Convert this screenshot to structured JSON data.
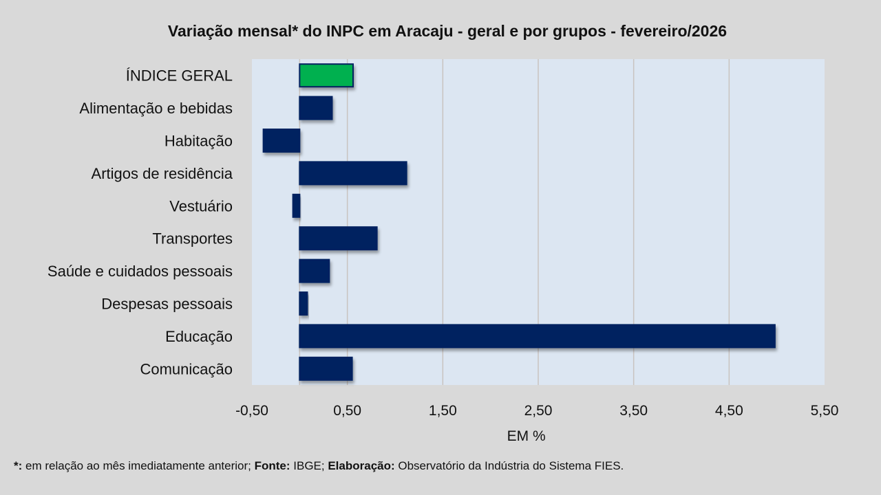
{
  "chart_data": {
    "type": "bar",
    "orientation": "horizontal",
    "title": "Variação  mensal*  do INPC em Aracaju  - geral e por grupos  - fevereiro/2026",
    "categories": [
      "ÍNDICE GERAL",
      "Alimentação e bebidas",
      "Habitação",
      "Artigos de residência",
      "Vestuário",
      "Transportes",
      "Saúde e cuidados pessoais",
      "Despesas pessoais",
      "Educação",
      "Comunicação"
    ],
    "values": [
      0.56,
      0.34,
      -0.38,
      1.12,
      -0.07,
      0.81,
      0.31,
      0.08,
      4.98,
      0.55
    ],
    "highlight_color": "#00b050",
    "bar_color": "#002060",
    "xlabel": "EM %",
    "xlim": [
      -0.5,
      5.5
    ],
    "xticks": [
      "-0,50",
      "0,50",
      "1,50",
      "2,50",
      "3,50",
      "4,50",
      "5,50"
    ],
    "xtick_values": [
      -0.5,
      0.5,
      1.5,
      2.5,
      3.5,
      4.5,
      5.5
    ],
    "grid": true
  },
  "footnote": {
    "star": "*:",
    "part1": " em relação ao mês imediatamente  anterior; ",
    "fonte_label": "Fonte:",
    "fonte": " IBGE; ",
    "elab_label": "Elaboração:",
    "elab": " Observatório da Indústria do Sistema FIES."
  }
}
